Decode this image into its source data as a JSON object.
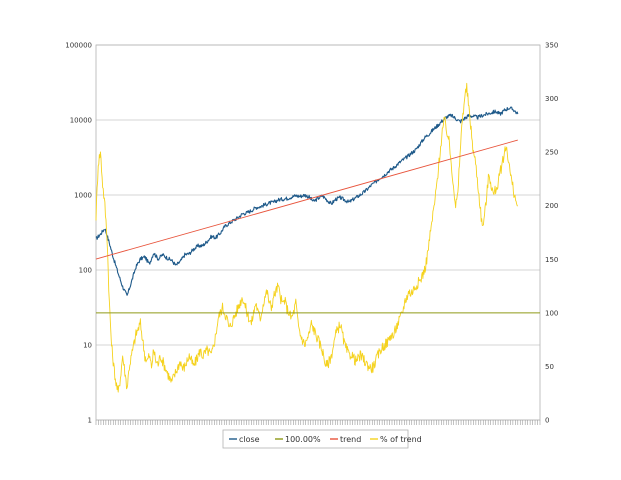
{
  "chart_data": {
    "type": "line",
    "title": "",
    "xlabel": "",
    "ylabel": "",
    "grid": true,
    "legend_position": "bottom-center",
    "y_left": {
      "scale": "log",
      "range": [
        1,
        100000
      ],
      "ticks": [
        1,
        10,
        100,
        1000,
        10000,
        100000
      ]
    },
    "y_right": {
      "scale": "linear",
      "range": [
        0,
        350
      ],
      "ticks": [
        0,
        50,
        100,
        150,
        200,
        250,
        300,
        350
      ]
    },
    "x_range": [
      0,
      100
    ],
    "series": [
      {
        "name": "close",
        "axis": "left",
        "color": "#1f5a8a",
        "points": [
          [
            0,
            260
          ],
          [
            1,
            300
          ],
          [
            2,
            360
          ],
          [
            3,
            230
          ],
          [
            4,
            140
          ],
          [
            5,
            90
          ],
          [
            6,
            60
          ],
          [
            7,
            45
          ],
          [
            8,
            70
          ],
          [
            9,
            110
          ],
          [
            10,
            140
          ],
          [
            11,
            150
          ],
          [
            12,
            120
          ],
          [
            13,
            170
          ],
          [
            14,
            140
          ],
          [
            15,
            160
          ],
          [
            16,
            145
          ],
          [
            17,
            135
          ],
          [
            18,
            115
          ],
          [
            19,
            130
          ],
          [
            20,
            160
          ],
          [
            21,
            165
          ],
          [
            22,
            190
          ],
          [
            23,
            210
          ],
          [
            24,
            210
          ],
          [
            25,
            240
          ],
          [
            26,
            280
          ],
          [
            27,
            270
          ],
          [
            28,
            310
          ],
          [
            29,
            380
          ],
          [
            30,
            420
          ],
          [
            31,
            460
          ],
          [
            32,
            500
          ],
          [
            33,
            560
          ],
          [
            34,
            580
          ],
          [
            35,
            620
          ],
          [
            36,
            680
          ],
          [
            37,
            700
          ],
          [
            38,
            740
          ],
          [
            39,
            780
          ],
          [
            40,
            800
          ],
          [
            41,
            860
          ],
          [
            42,
            880
          ],
          [
            43,
            900
          ],
          [
            44,
            940
          ],
          [
            45,
            980
          ],
          [
            46,
            960
          ],
          [
            47,
            1000
          ],
          [
            48,
            940
          ],
          [
            49,
            820
          ],
          [
            50,
            900
          ],
          [
            51,
            980
          ],
          [
            52,
            860
          ],
          [
            53,
            760
          ],
          [
            54,
            880
          ],
          [
            55,
            920
          ],
          [
            56,
            860
          ],
          [
            57,
            800
          ],
          [
            58,
            880
          ],
          [
            59,
            960
          ],
          [
            60,
            1050
          ],
          [
            61,
            1180
          ],
          [
            62,
            1350
          ],
          [
            63,
            1500
          ],
          [
            64,
            1700
          ],
          [
            65,
            1850
          ],
          [
            66,
            2100
          ],
          [
            67,
            2300
          ],
          [
            68,
            2600
          ],
          [
            69,
            2900
          ],
          [
            70,
            3200
          ],
          [
            71,
            3600
          ],
          [
            72,
            4000
          ],
          [
            73,
            4800
          ],
          [
            74,
            5800
          ],
          [
            75,
            6500
          ],
          [
            76,
            7500
          ],
          [
            77,
            8500
          ],
          [
            78,
            9800
          ],
          [
            79,
            11000
          ],
          [
            80,
            11500
          ],
          [
            81,
            10500
          ],
          [
            82,
            9500
          ],
          [
            83,
            10500
          ],
          [
            84,
            11500
          ],
          [
            85,
            11200
          ],
          [
            86,
            10800
          ],
          [
            87,
            11500
          ],
          [
            88,
            12000
          ],
          [
            89,
            12500
          ],
          [
            90,
            13000
          ],
          [
            91,
            12000
          ],
          [
            92,
            13500
          ],
          [
            93,
            14500
          ],
          [
            94,
            13800
          ],
          [
            95,
            12000
          ]
        ]
      },
      {
        "name": "100.00%",
        "axis": "right",
        "color": "#8f9a18",
        "points": [
          [
            0,
            100
          ],
          [
            100,
            100
          ]
        ]
      },
      {
        "name": "trend",
        "axis": "left",
        "color": "#e8543c",
        "points": [
          [
            0,
            140
          ],
          [
            95,
            5400
          ]
        ]
      },
      {
        "name": "% of trend",
        "axis": "right",
        "color": "#f5d21e",
        "points": [
          [
            0,
            190
          ],
          [
            0.5,
            240
          ],
          [
            1,
            250
          ],
          [
            1.5,
            220
          ],
          [
            2,
            200
          ],
          [
            2.5,
            170
          ],
          [
            3,
            110
          ],
          [
            3.5,
            70
          ],
          [
            4,
            50
          ],
          [
            4.5,
            35
          ],
          [
            5,
            25
          ],
          [
            5.5,
            40
          ],
          [
            6,
            60
          ],
          [
            6.5,
            45
          ],
          [
            7,
            30
          ],
          [
            7.5,
            50
          ],
          [
            8,
            60
          ],
          [
            8.5,
            70
          ],
          [
            9,
            80
          ],
          [
            9.5,
            85
          ],
          [
            10,
            90
          ],
          [
            10.5,
            75
          ],
          [
            11,
            60
          ],
          [
            11.5,
            55
          ],
          [
            12,
            60
          ],
          [
            12.5,
            50
          ],
          [
            13,
            65
          ],
          [
            13.5,
            55
          ],
          [
            14,
            52
          ],
          [
            14.5,
            60
          ],
          [
            15,
            55
          ],
          [
            15.5,
            50
          ],
          [
            16,
            45
          ],
          [
            16.5,
            40
          ],
          [
            17,
            35
          ],
          [
            17.5,
            40
          ],
          [
            18,
            45
          ],
          [
            18.5,
            50
          ],
          [
            19,
            55
          ],
          [
            19.5,
            48
          ],
          [
            20,
            50
          ],
          [
            20.5,
            55
          ],
          [
            21,
            60
          ],
          [
            21.5,
            55
          ],
          [
            22,
            50
          ],
          [
            22.5,
            55
          ],
          [
            23,
            60
          ],
          [
            23.5,
            65
          ],
          [
            24,
            60
          ],
          [
            24.5,
            62
          ],
          [
            25,
            65
          ],
          [
            25.5,
            63
          ],
          [
            26,
            60
          ],
          [
            26.5,
            70
          ],
          [
            27,
            80
          ],
          [
            27.5,
            95
          ],
          [
            28,
            100
          ],
          [
            28.5,
            105
          ],
          [
            29,
            100
          ],
          [
            29.5,
            95
          ],
          [
            30,
            85
          ],
          [
            30.5,
            90
          ],
          [
            31,
            95
          ],
          [
            31.5,
            100
          ],
          [
            32,
            105
          ],
          [
            32.5,
            110
          ],
          [
            33,
            115
          ],
          [
            33.5,
            108
          ],
          [
            34,
            100
          ],
          [
            34.5,
            95
          ],
          [
            35,
            90
          ],
          [
            35.5,
            100
          ],
          [
            36,
            110
          ],
          [
            36.5,
            100
          ],
          [
            37,
            95
          ],
          [
            37.5,
            105
          ],
          [
            38,
            115
          ],
          [
            38.5,
            120
          ],
          [
            39,
            110
          ],
          [
            39.5,
            105
          ],
          [
            40,
            115
          ],
          [
            40.5,
            120
          ],
          [
            41,
            125
          ],
          [
            41.5,
            115
          ],
          [
            42,
            108
          ],
          [
            42.5,
            112
          ],
          [
            43,
            104
          ],
          [
            43.5,
            100
          ],
          [
            44,
            95
          ],
          [
            44.5,
            100
          ],
          [
            45,
            110
          ],
          [
            45.5,
            90
          ],
          [
            46,
            80
          ],
          [
            46.5,
            75
          ],
          [
            47,
            70
          ],
          [
            47.5,
            75
          ],
          [
            48,
            80
          ],
          [
            48.5,
            90
          ],
          [
            49,
            85
          ],
          [
            49.5,
            80
          ],
          [
            50,
            75
          ],
          [
            50.5,
            70
          ],
          [
            51,
            65
          ],
          [
            51.5,
            55
          ],
          [
            52,
            50
          ],
          [
            52.5,
            55
          ],
          [
            53,
            60
          ],
          [
            53.5,
            70
          ],
          [
            54,
            80
          ],
          [
            54.5,
            85
          ],
          [
            55,
            90
          ],
          [
            55.5,
            80
          ],
          [
            56,
            70
          ],
          [
            56.5,
            65
          ],
          [
            57,
            60
          ],
          [
            57.5,
            62
          ],
          [
            58,
            58
          ],
          [
            58.5,
            55
          ],
          [
            59,
            57
          ],
          [
            59.5,
            60
          ],
          [
            60,
            58
          ],
          [
            60.5,
            55
          ],
          [
            61,
            52
          ],
          [
            61.5,
            50
          ],
          [
            62,
            48
          ],
          [
            62.5,
            50
          ],
          [
            63,
            55
          ],
          [
            63.5,
            60
          ],
          [
            64,
            65
          ],
          [
            64.5,
            68
          ],
          [
            65,
            70
          ],
          [
            65.5,
            72
          ],
          [
            66,
            75
          ],
          [
            66.5,
            80
          ],
          [
            67,
            78
          ],
          [
            67.5,
            85
          ],
          [
            68,
            90
          ],
          [
            68.5,
            95
          ],
          [
            69,
            100
          ],
          [
            69.5,
            110
          ],
          [
            70,
            115
          ],
          [
            70.5,
            120
          ],
          [
            71,
            118
          ],
          [
            71.5,
            122
          ],
          [
            72,
            125
          ],
          [
            72.5,
            128
          ],
          [
            73,
            130
          ],
          [
            73.5,
            135
          ],
          [
            74,
            140
          ],
          [
            74.5,
            150
          ],
          [
            75,
            165
          ],
          [
            75.5,
            180
          ],
          [
            76,
            195
          ],
          [
            76.5,
            210
          ],
          [
            77,
            230
          ],
          [
            77.5,
            250
          ],
          [
            78,
            270
          ],
          [
            78.5,
            280
          ],
          [
            79,
            270
          ],
          [
            79.5,
            260
          ],
          [
            80,
            240
          ],
          [
            80.5,
            220
          ],
          [
            81,
            200
          ],
          [
            81.5,
            210
          ],
          [
            82,
            250
          ],
          [
            82.5,
            280
          ],
          [
            83,
            300
          ],
          [
            83.5,
            310
          ],
          [
            84,
            290
          ],
          [
            84.5,
            270
          ],
          [
            85,
            250
          ],
          [
            85.5,
            240
          ],
          [
            86,
            220
          ],
          [
            86.5,
            200
          ],
          [
            87,
            180
          ],
          [
            87.5,
            190
          ],
          [
            88,
            210
          ],
          [
            88.5,
            230
          ],
          [
            89,
            220
          ],
          [
            89.5,
            210
          ],
          [
            90,
            215
          ],
          [
            90.5,
            220
          ],
          [
            91,
            230
          ],
          [
            91.5,
            240
          ],
          [
            92,
            250
          ],
          [
            92.5,
            255
          ],
          [
            93,
            240
          ],
          [
            93.5,
            225
          ],
          [
            94,
            215
          ],
          [
            94.5,
            205
          ],
          [
            95,
            200
          ]
        ]
      }
    ]
  }
}
